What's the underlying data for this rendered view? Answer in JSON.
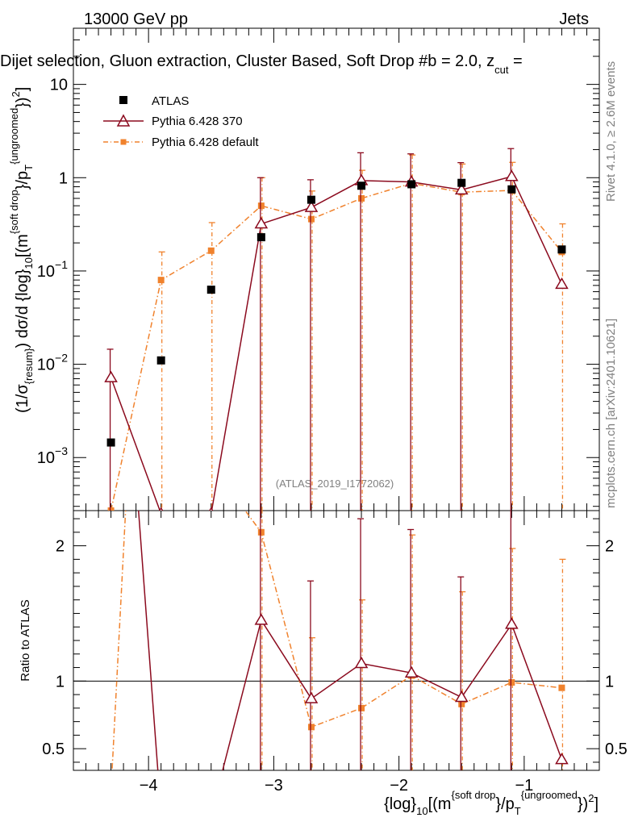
{
  "header": {
    "energy": "13000 GeV pp",
    "category": "Jets"
  },
  "selection_prefix": "Dijet selection, Gluon extraction, Cluster Based, Soft Drop #b",
  "selection_suffix": " = 2.0, z",
  "selection_sub": "cut",
  "selection_tail": " =",
  "side_labels": {
    "rivet": "Rivet 4.1.0, ≥ 2.6M events",
    "mcplots": "mcplots.cern.ch [arXiv:2401.10621]"
  },
  "watermark": "(ATLAS_2019_I1772062)",
  "y_axis_main": {
    "prefix": "(1/σ",
    "sub": "{resum}",
    "mid": ") dσ/d {log}",
    "sub2": "10",
    "tail1": "[(m",
    "sup1": "{soft drop",
    "tail2": "}/p",
    "sub3": "T",
    "sup2": "{ungroomed",
    "tail3": "})",
    "sup3": "2",
    "tail4": "]"
  },
  "y_axis_ratio": "Ratio to ATLAS",
  "x_axis": {
    "prefix": "{log}",
    "sub": "10",
    "tail1": "[(m",
    "sup1": "{soft drop",
    "tail2": "}/p",
    "sub2": "T",
    "sup2": "{ungroomed",
    "tail3": "})",
    "sup3": "2",
    "tail4": "]"
  },
  "chart_data": {
    "type": "scatter",
    "x_range": [
      -4.6,
      -0.4
    ],
    "x_ticks": [
      -4,
      -3,
      -2,
      -1
    ],
    "x_tick_labels": [
      "−4",
      "−3",
      "−2",
      "−1"
    ],
    "main_ylim": [
      0.00027,
      40
    ],
    "main_log": true,
    "main_ticks": [
      {
        "v": 0.001,
        "base": "10",
        "exp": "−3"
      },
      {
        "v": 0.01,
        "base": "10",
        "exp": "−2"
      },
      {
        "v": 0.1,
        "base": "10",
        "exp": "−1"
      },
      {
        "v": 1,
        "base": "1",
        "exp": ""
      },
      {
        "v": 10,
        "base": "10",
        "exp": ""
      }
    ],
    "ratio_ylim": [
      0.34,
      2.26
    ],
    "ratio_ticks": [
      0.5,
      1,
      2
    ],
    "ratio_tick_labels": [
      "0.5",
      "1",
      "2"
    ],
    "legend": [
      {
        "label": "ATLAS"
      },
      {
        "label": "Pythia 6.428 370"
      },
      {
        "label": "Pythia 6.428 default"
      }
    ],
    "x": [
      -4.3,
      -3.9,
      -3.5,
      -3.1,
      -2.7,
      -2.3,
      -1.9,
      -1.5,
      -1.1,
      -0.7
    ],
    "series": [
      {
        "name": "ATLAS",
        "color": "#000000",
        "values": [
          0.00145,
          0.011,
          0.063,
          0.23,
          0.58,
          0.82,
          0.85,
          0.88,
          0.75,
          0.17
        ]
      },
      {
        "name": "Pythia 6.428 370",
        "color": "#8b0a1e",
        "values": [
          0.0072,
          0.00025,
          0.00025,
          0.32,
          0.48,
          0.93,
          0.9,
          0.74,
          1.03,
          0.072
        ],
        "err_up": [
          0.0145,
          null,
          null,
          1.0,
          0.95,
          1.85,
          1.8,
          1.45,
          2.05,
          null
        ],
        "ratio": [
          5.0,
          0.02,
          0.01,
          1.45,
          0.87,
          1.13,
          1.06,
          0.88,
          1.42,
          0.42
        ],
        "ratio_err_up": [
          null,
          null,
          null,
          2.8,
          1.74,
          2.2,
          2.12,
          1.77,
          2.8,
          null
        ]
      },
      {
        "name": "Pythia 6.428 default",
        "color": "#f0822d",
        "values": [
          0.00027,
          0.08,
          0.165,
          0.5,
          0.36,
          0.6,
          0.87,
          0.7,
          0.73,
          0.16
        ],
        "err_up": [
          null,
          0.16,
          0.33,
          1.0,
          0.72,
          1.2,
          1.75,
          1.4,
          1.46,
          0.32
        ],
        "ratio": [
          0.18,
          7.3,
          2.6,
          2.1,
          0.66,
          0.8,
          1.04,
          0.83,
          0.99,
          0.95
        ],
        "ratio_err_up": [
          null,
          null,
          null,
          4.2,
          1.32,
          1.6,
          2.08,
          1.66,
          1.98,
          1.9
        ]
      }
    ]
  }
}
